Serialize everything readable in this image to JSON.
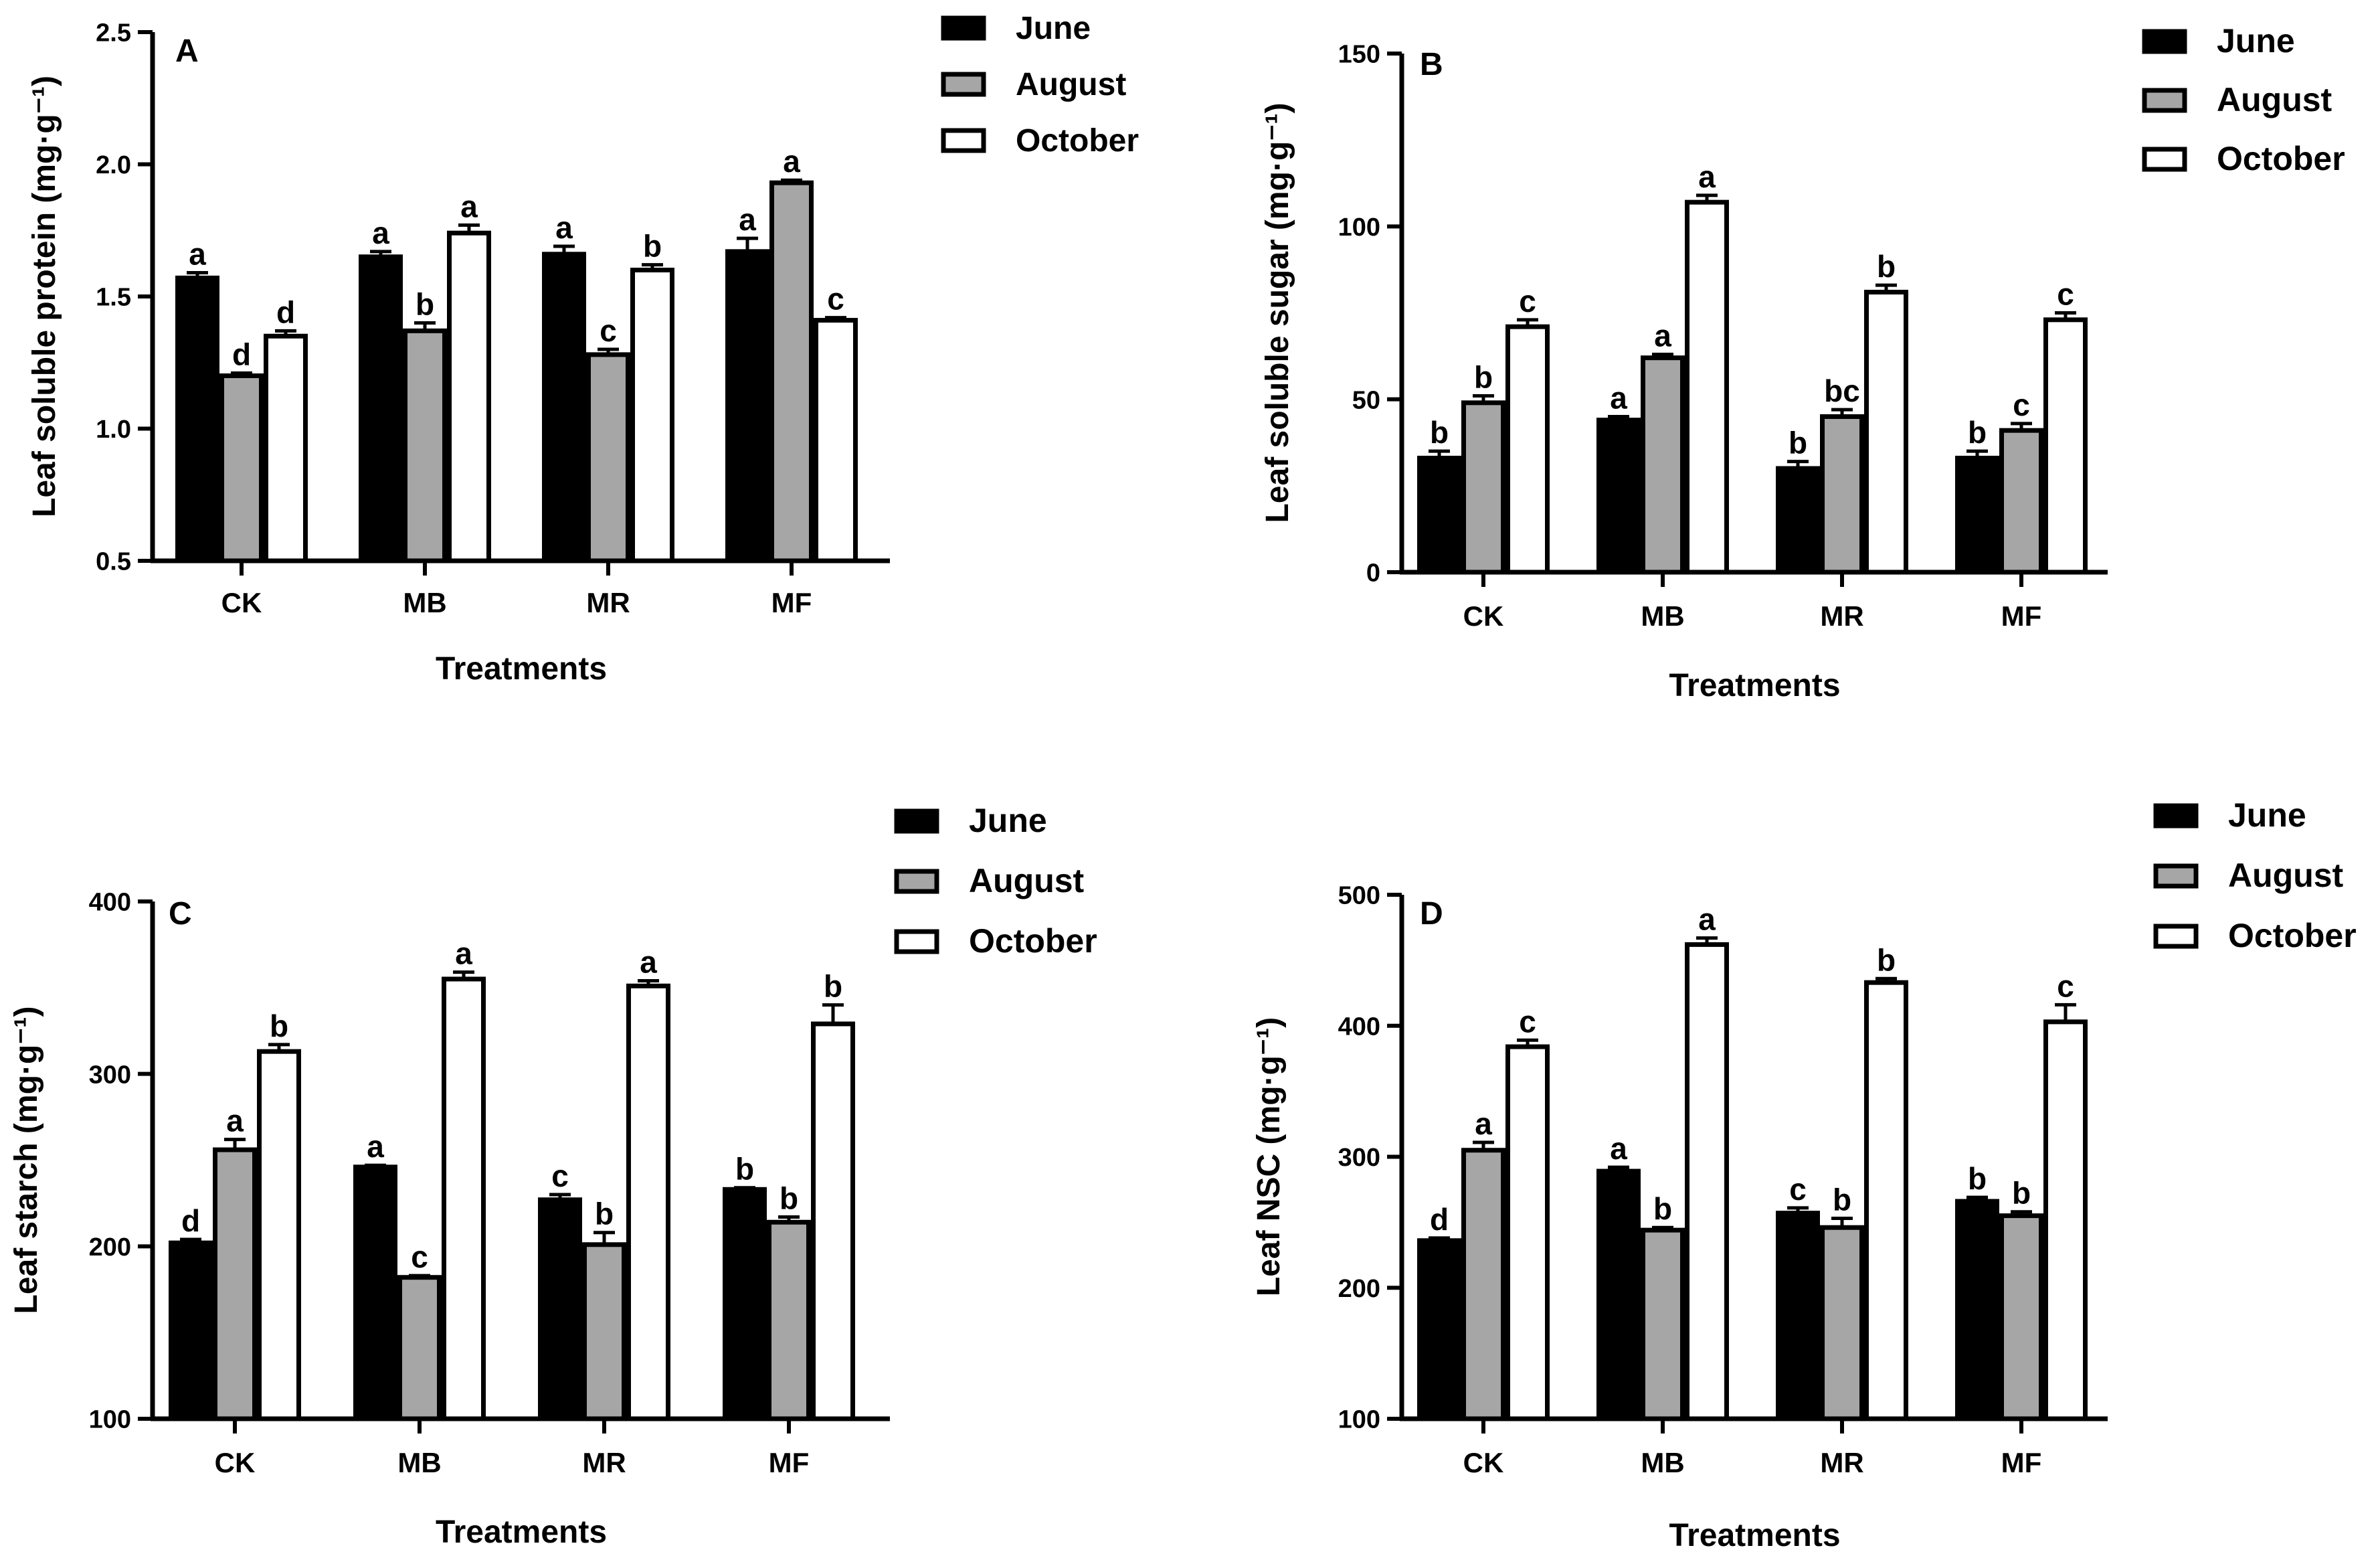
{
  "chart_data": [
    {
      "panel": "A",
      "type": "bar",
      "title": "",
      "xlabel": "Treatments",
      "ylabel": "Leaf soluble protein (mg·g⁻¹)",
      "ylim": [
        0.5,
        2.5
      ],
      "yticks": [
        "0.5",
        "1.0",
        "1.5",
        "2.0",
        "2.5"
      ],
      "categories": [
        "CK",
        "MB",
        "MR",
        "MF"
      ],
      "series": [
        {
          "name": "June",
          "color": "#000000",
          "values": [
            1.57,
            1.65,
            1.66,
            1.67
          ],
          "errors": [
            0.02,
            0.02,
            0.03,
            0.05
          ],
          "letters": [
            "a",
            "a",
            "a",
            "a"
          ]
        },
        {
          "name": "August",
          "color": "#a6a6a6",
          "values": [
            1.2,
            1.37,
            1.28,
            1.93
          ],
          "errors": [
            0.01,
            0.03,
            0.02,
            0.01
          ],
          "letters": [
            "d",
            "b",
            "c",
            "a"
          ]
        },
        {
          "name": "October",
          "color": "#ffffff",
          "values": [
            1.35,
            1.74,
            1.6,
            1.41
          ],
          "errors": [
            0.02,
            0.03,
            0.02,
            0.01
          ],
          "letters": [
            "d",
            "a",
            "b",
            "c"
          ]
        }
      ],
      "legend": [
        "June",
        "August",
        "October"
      ],
      "legend_position": "top-right"
    },
    {
      "panel": "B",
      "type": "bar",
      "title": "",
      "xlabel": "Treatments",
      "ylabel": "Leaf soluble sugar (mg·g⁻¹)",
      "ylim": [
        0,
        150
      ],
      "yticks": [
        "0",
        "50",
        "100",
        "150"
      ],
      "categories": [
        "CK",
        "MB",
        "MR",
        "MF"
      ],
      "series": [
        {
          "name": "June",
          "color": "#000000",
          "values": [
            33,
            44,
            30,
            33
          ],
          "errors": [
            2,
            1,
            2,
            2
          ],
          "letters": [
            "b",
            "a",
            "b",
            "b"
          ]
        },
        {
          "name": "August",
          "color": "#a6a6a6",
          "values": [
            49,
            62,
            45,
            41
          ],
          "errors": [
            2,
            1,
            2,
            2
          ],
          "letters": [
            "b",
            "a",
            "bc",
            "c"
          ]
        },
        {
          "name": "October",
          "color": "#ffffff",
          "values": [
            71,
            107,
            81,
            73
          ],
          "errors": [
            2,
            2,
            2,
            2
          ],
          "letters": [
            "c",
            "a",
            "b",
            "c"
          ]
        }
      ],
      "legend": [
        "June",
        "August",
        "October"
      ],
      "legend_position": "top-right"
    },
    {
      "panel": "C",
      "type": "bar",
      "title": "",
      "xlabel": "Treatments",
      "ylabel": "Leaf starch (mg·g⁻¹)",
      "ylim": [
        100,
        400
      ],
      "yticks": [
        "100",
        "200",
        "300",
        "400"
      ],
      "categories": [
        "CK",
        "MB",
        "MR",
        "MF"
      ],
      "series": [
        {
          "name": "June",
          "color": "#000000",
          "values": [
            202,
            246,
            227,
            233
          ],
          "errors": [
            2,
            1,
            3,
            1
          ],
          "letters": [
            "d",
            "a",
            "c",
            "b"
          ]
        },
        {
          "name": "August",
          "color": "#a6a6a6",
          "values": [
            256,
            182,
            201,
            214
          ],
          "errors": [
            6,
            1,
            7,
            3
          ],
          "letters": [
            "a",
            "c",
            "b",
            "b"
          ]
        },
        {
          "name": "October",
          "color": "#ffffff",
          "values": [
            313,
            355,
            351,
            329
          ],
          "errors": [
            4,
            4,
            3,
            11
          ],
          "letters": [
            "b",
            "a",
            "a",
            "b"
          ]
        }
      ],
      "legend": [
        "June",
        "August",
        "October"
      ],
      "legend_position": "top-right"
    },
    {
      "panel": "D",
      "type": "bar",
      "title": "",
      "xlabel": "Treatments",
      "ylabel": "Leaf NSC (mg·g⁻¹)",
      "ylim": [
        100,
        500
      ],
      "yticks": [
        "100",
        "200",
        "300",
        "400",
        "500"
      ],
      "categories": [
        "CK",
        "MB",
        "MR",
        "MF"
      ],
      "series": [
        {
          "name": "June",
          "color": "#000000",
          "values": [
            236,
            289,
            257,
            266
          ],
          "errors": [
            2,
            3,
            4,
            3
          ],
          "letters": [
            "d",
            "a",
            "c",
            "b"
          ]
        },
        {
          "name": "August",
          "color": "#a6a6a6",
          "values": [
            305,
            244,
            246,
            255
          ],
          "errors": [
            6,
            2,
            7,
            3
          ],
          "letters": [
            "a",
            "b",
            "b",
            "b"
          ]
        },
        {
          "name": "October",
          "color": "#ffffff",
          "values": [
            384,
            462,
            433,
            403
          ],
          "errors": [
            5,
            5,
            3,
            13
          ],
          "letters": [
            "c",
            "a",
            "b",
            "c"
          ]
        }
      ],
      "legend": [
        "June",
        "August",
        "October"
      ],
      "legend_position": "top-right"
    }
  ]
}
